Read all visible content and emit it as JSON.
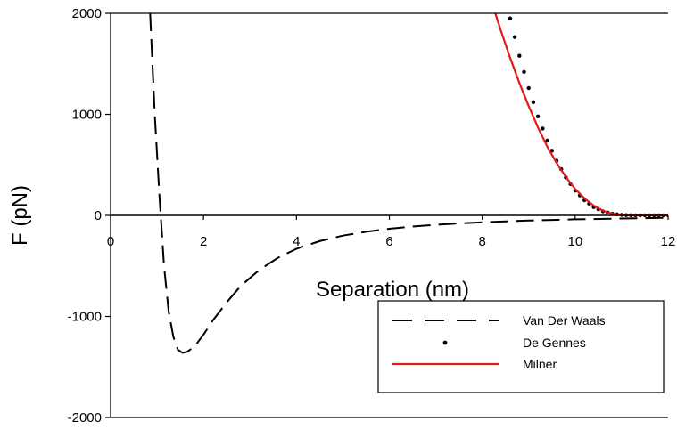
{
  "chart_data": {
    "type": "line",
    "xlabel": "Separation (nm)",
    "ylabel": "F (pN)",
    "xlim": [
      0,
      12
    ],
    "ylim": [
      -2000,
      2000
    ],
    "x_ticks": [
      "0",
      "2",
      "4",
      "6",
      "8",
      "10",
      "12"
    ],
    "y_ticks": [
      "-2000",
      "-1000",
      "0",
      "1000",
      "2000"
    ],
    "grid": false,
    "legend_position": "bottom-right",
    "series": [
      {
        "name": "Van Der Waals",
        "style": "dashed",
        "color": "#000000",
        "x": [
          0.85,
          0.95,
          1.05,
          1.15,
          1.25,
          1.35,
          1.45,
          1.55,
          1.65,
          1.8,
          2.0,
          2.2,
          2.5,
          2.8,
          3.2,
          3.6,
          4.0,
          4.5,
          5.0,
          5.5,
          6.0,
          6.5,
          7.0,
          7.5,
          8.0,
          8.5,
          9.0,
          9.5,
          10.0,
          10.5,
          11.0,
          11.5,
          12.0
        ],
        "y": [
          2000,
          1000,
          200,
          -500,
          -950,
          -1200,
          -1330,
          -1360,
          -1350,
          -1300,
          -1180,
          -1040,
          -860,
          -700,
          -540,
          -420,
          -330,
          -255,
          -200,
          -162,
          -132,
          -110,
          -93,
          -79,
          -68,
          -59,
          -51,
          -45,
          -39,
          -35,
          -31,
          -27,
          -24
        ]
      },
      {
        "name": "De Gennes",
        "style": "dotted",
        "color": "#000000",
        "x": [
          8.6,
          8.8,
          9.0,
          9.2,
          9.4,
          9.6,
          9.8,
          10.0,
          10.2,
          10.4,
          10.6,
          10.8,
          11.0,
          11.2,
          11.4,
          11.6,
          11.8,
          12.0
        ],
        "y": [
          1950,
          1580,
          1260,
          980,
          740,
          540,
          375,
          245,
          150,
          82,
          40,
          16,
          5,
          1,
          0,
          0,
          0,
          0
        ]
      },
      {
        "name": "Milner",
        "style": "solid",
        "color": "#e01b1b",
        "x": [
          8.28,
          8.4,
          8.6,
          8.8,
          9.0,
          9.2,
          9.4,
          9.6,
          9.8,
          10.0,
          10.2,
          10.4,
          10.6,
          10.8,
          11.0,
          11.2,
          11.4,
          11.6,
          11.8,
          12.0
        ],
        "y": [
          2000,
          1830,
          1560,
          1310,
          1080,
          870,
          680,
          520,
          380,
          262,
          168,
          96,
          46,
          16,
          3,
          0,
          0,
          0,
          0,
          0
        ]
      }
    ]
  }
}
